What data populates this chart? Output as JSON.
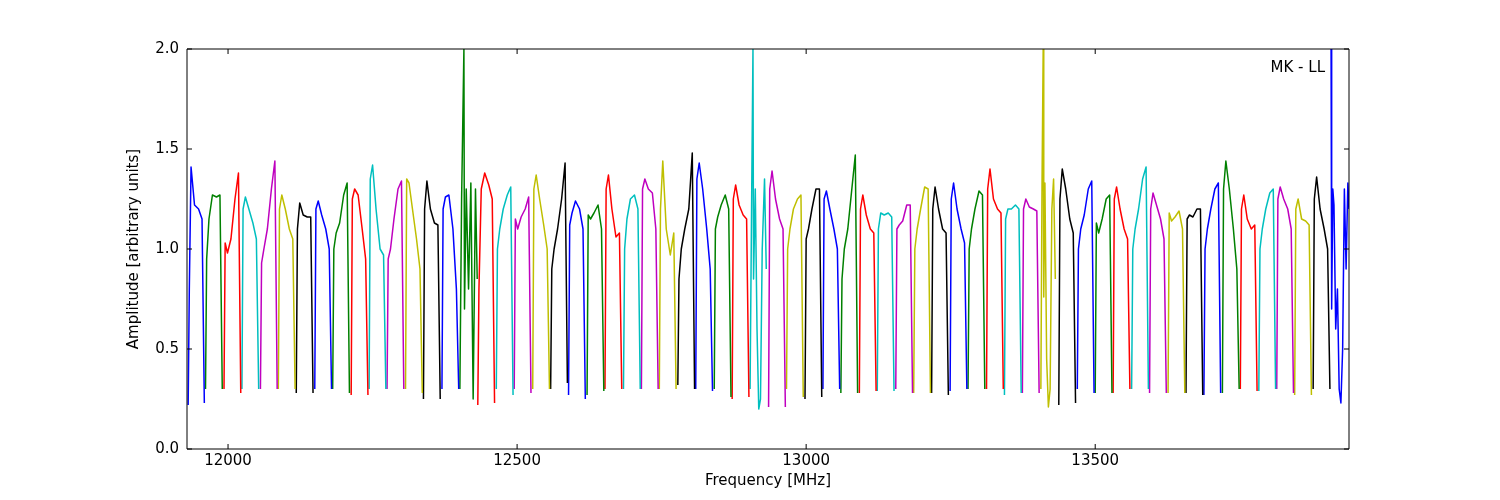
{
  "chart_data": {
    "type": "line",
    "xlabel": "Frequency [MHz]",
    "ylabel": "Amplitude [arbitrary units]",
    "annotations": [
      "MK - LL"
    ],
    "xlim": [
      11929,
      13939
    ],
    "ylim": [
      0,
      2
    ],
    "xticks": [
      12000,
      12500,
      13000,
      13500
    ],
    "yticks": [
      {
        "value": 0,
        "label": "0.0"
      },
      {
        "value": 0.5,
        "label": "0.5"
      },
      {
        "value": 1,
        "label": "1.0"
      },
      {
        "value": 1.5,
        "label": "1.5"
      },
      {
        "value": 2,
        "label": "2.0"
      }
    ],
    "grid": false,
    "legend": false,
    "marker": "none",
    "line_style": "solid",
    "series": [
      {
        "color": "#0000ff",
        "x": [
          11931,
          11933,
          11936,
          11942,
          11949,
          11955,
          11959
        ],
        "values": [
          0.22,
          0.8,
          1.41,
          1.22,
          1.2,
          1.15,
          0.23
        ]
      },
      {
        "color": "#008000",
        "x": [
          11961,
          11963,
          11967,
          11973,
          11980,
          11986,
          11990
        ],
        "values": [
          0.3,
          0.95,
          1.15,
          1.27,
          1.26,
          1.27,
          0.3
        ]
      },
      {
        "color": "#ff0000",
        "x": [
          11993,
          11995,
          11999,
          12005,
          12012,
          12018,
          12022
        ],
        "values": [
          0.3,
          1.03,
          0.98,
          1.05,
          1.25,
          1.38,
          0.28
        ]
      },
      {
        "color": "#00bfbf",
        "x": [
          12024,
          12026,
          12030,
          12036,
          12043,
          12049,
          12053
        ],
        "values": [
          0.3,
          1.2,
          1.26,
          1.2,
          1.13,
          1.05,
          0.3
        ]
      },
      {
        "color": "#bf00bf",
        "x": [
          12056,
          12058,
          12062,
          12068,
          12075,
          12081,
          12085
        ],
        "values": [
          0.3,
          0.93,
          1.0,
          1.1,
          1.3,
          1.44,
          0.3
        ]
      },
      {
        "color": "#bfbf00",
        "x": [
          12087,
          12089,
          12093,
          12099,
          12106,
          12112,
          12116
        ],
        "values": [
          0.3,
          1.2,
          1.27,
          1.2,
          1.1,
          1.05,
          0.3
        ]
      },
      {
        "color": "#000000",
        "x": [
          12118,
          12120,
          12124,
          12130,
          12137,
          12143,
          12147
        ],
        "values": [
          0.28,
          1.1,
          1.23,
          1.17,
          1.16,
          1.16,
          0.28
        ]
      },
      {
        "color": "#0000ff",
        "x": [
          12150,
          12152,
          12156,
          12162,
          12169,
          12175,
          12179
        ],
        "values": [
          0.3,
          1.2,
          1.24,
          1.17,
          1.1,
          1.0,
          0.3
        ]
      },
      {
        "color": "#008000",
        "x": [
          12181,
          12183,
          12187,
          12193,
          12200,
          12206,
          12210
        ],
        "values": [
          0.3,
          1.0,
          1.08,
          1.13,
          1.27,
          1.33,
          0.28
        ]
      },
      {
        "color": "#ff0000",
        "x": [
          12213,
          12215,
          12219,
          12225,
          12232,
          12238,
          12242
        ],
        "values": [
          0.27,
          1.25,
          1.3,
          1.27,
          1.1,
          0.95,
          0.27
        ]
      },
      {
        "color": "#00bfbf",
        "x": [
          12244,
          12246,
          12250,
          12256,
          12263,
          12269,
          12273
        ],
        "values": [
          0.3,
          1.35,
          1.42,
          1.2,
          1.0,
          0.97,
          0.3
        ]
      },
      {
        "color": "#bf00bf",
        "x": [
          12275,
          12277,
          12281,
          12287,
          12294,
          12300,
          12304
        ],
        "values": [
          0.3,
          0.95,
          1.0,
          1.15,
          1.3,
          1.34,
          0.3
        ]
      },
      {
        "color": "#bfbf00",
        "x": [
          12307,
          12309,
          12313,
          12319,
          12326,
          12332,
          12336
        ],
        "values": [
          0.3,
          1.35,
          1.33,
          1.2,
          1.05,
          0.9,
          0.28
        ]
      },
      {
        "color": "#000000",
        "x": [
          12338,
          12340,
          12344,
          12350,
          12357,
          12363,
          12367
        ],
        "values": [
          0.25,
          1.2,
          1.34,
          1.2,
          1.13,
          1.12,
          0.25
        ]
      },
      {
        "color": "#0000ff",
        "x": [
          12370,
          12372,
          12376,
          12382,
          12389,
          12395,
          12399
        ],
        "values": [
          0.3,
          1.2,
          1.26,
          1.27,
          1.1,
          0.8,
          0.3
        ]
      },
      {
        "color": "#008000",
        "x": [
          12401,
          12404,
          12408,
          12409,
          12412,
          12416,
          12420,
          12424,
          12428,
          12431
        ],
        "values": [
          0.3,
          1.25,
          2.0,
          0.7,
          1.3,
          0.8,
          1.33,
          0.25,
          1.3,
          0.85
        ]
      },
      {
        "color": "#ff0000",
        "x": [
          12432,
          12434,
          12438,
          12444,
          12451,
          12457,
          12461
        ],
        "values": [
          0.22,
          0.8,
          1.3,
          1.38,
          1.32,
          1.25,
          0.23
        ]
      },
      {
        "color": "#00bfbf",
        "x": [
          12464,
          12466,
          12470,
          12476,
          12483,
          12489,
          12493
        ],
        "values": [
          0.3,
          1.0,
          1.1,
          1.2,
          1.27,
          1.31,
          0.27
        ]
      },
      {
        "color": "#bf00bf",
        "x": [
          12495,
          12497,
          12501,
          12507,
          12514,
          12520,
          12524
        ],
        "values": [
          0.3,
          1.15,
          1.1,
          1.16,
          1.2,
          1.26,
          0.28
        ]
      },
      {
        "color": "#bfbf00",
        "x": [
          12527,
          12529,
          12533,
          12539,
          12546,
          12552,
          12556
        ],
        "values": [
          0.3,
          1.3,
          1.37,
          1.25,
          1.12,
          1.0,
          0.3
        ]
      },
      {
        "color": "#000000",
        "x": [
          12558,
          12560,
          12564,
          12570,
          12577,
          12583,
          12587
        ],
        "values": [
          0.3,
          0.9,
          1.0,
          1.1,
          1.25,
          1.43,
          0.33
        ]
      },
      {
        "color": "#0000ff",
        "x": [
          12589,
          12591,
          12595,
          12601,
          12608,
          12614,
          12618
        ],
        "values": [
          0.27,
          1.12,
          1.18,
          1.24,
          1.2,
          1.1,
          0.25
        ]
      },
      {
        "color": "#008000",
        "x": [
          12621,
          12623,
          12627,
          12633,
          12640,
          12646,
          12650
        ],
        "values": [
          0.27,
          1.17,
          1.15,
          1.18,
          1.22,
          1.1,
          0.29
        ]
      },
      {
        "color": "#ff0000",
        "x": [
          12652,
          12654,
          12658,
          12664,
          12671,
          12677,
          12681
        ],
        "values": [
          0.3,
          1.3,
          1.37,
          1.2,
          1.06,
          1.08,
          0.3
        ]
      },
      {
        "color": "#00bfbf",
        "x": [
          12684,
          12686,
          12690,
          12696,
          12703,
          12709,
          12713
        ],
        "values": [
          0.3,
          1.0,
          1.15,
          1.25,
          1.27,
          1.2,
          0.3
        ]
      },
      {
        "color": "#bf00bf",
        "x": [
          12715,
          12717,
          12721,
          12727,
          12734,
          12740,
          12744
        ],
        "values": [
          0.3,
          1.3,
          1.35,
          1.3,
          1.28,
          1.1,
          0.3
        ]
      },
      {
        "color": "#bfbf00",
        "x": [
          12746,
          12748,
          12752,
          12758,
          12765,
          12771,
          12775
        ],
        "values": [
          0.3,
          1.2,
          1.44,
          1.1,
          0.97,
          1.08,
          0.3
        ]
      },
      {
        "color": "#000000",
        "x": [
          12778,
          12780,
          12784,
          12790,
          12797,
          12803,
          12807
        ],
        "values": [
          0.32,
          0.85,
          1.0,
          1.1,
          1.2,
          1.48,
          0.3
        ]
      },
      {
        "color": "#0000ff",
        "x": [
          12809,
          12811,
          12815,
          12821,
          12828,
          12834,
          12838
        ],
        "values": [
          0.3,
          1.35,
          1.43,
          1.3,
          1.1,
          0.9,
          0.29
        ]
      },
      {
        "color": "#008000",
        "x": [
          12841,
          12843,
          12847,
          12853,
          12860,
          12866,
          12870
        ],
        "values": [
          0.3,
          1.1,
          1.16,
          1.22,
          1.27,
          1.2,
          0.26
        ]
      },
      {
        "color": "#ff0000",
        "x": [
          12872,
          12874,
          12878,
          12884,
          12891,
          12897,
          12901
        ],
        "values": [
          0.25,
          1.25,
          1.32,
          1.22,
          1.17,
          1.15,
          0.26
        ]
      },
      {
        "color": "#00bfbf",
        "x": [
          12903,
          12906,
          12908,
          12909,
          12912,
          12915,
          12918,
          12921,
          12924,
          12928,
          12931
        ],
        "values": [
          0.3,
          1.35,
          2.0,
          0.85,
          1.3,
          0.6,
          0.2,
          0.25,
          1.0,
          1.35,
          0.9
        ]
      },
      {
        "color": "#bf00bf",
        "x": [
          12935,
          12937,
          12941,
          12947,
          12954,
          12960,
          12964
        ],
        "values": [
          0.21,
          1.3,
          1.39,
          1.25,
          1.15,
          1.1,
          0.21
        ]
      },
      {
        "color": "#bfbf00",
        "x": [
          12966,
          12968,
          12972,
          12978,
          12985,
          12991,
          12995
        ],
        "values": [
          0.3,
          1.0,
          1.1,
          1.2,
          1.25,
          1.27,
          0.26
        ]
      },
      {
        "color": "#000000",
        "x": [
          12998,
          13000,
          13004,
          13010,
          13017,
          13023,
          13027
        ],
        "values": [
          0.25,
          1.05,
          1.1,
          1.2,
          1.3,
          1.3,
          0.26
        ]
      },
      {
        "color": "#0000ff",
        "x": [
          13029,
          13031,
          13035,
          13041,
          13048,
          13054,
          13058
        ],
        "values": [
          0.3,
          1.25,
          1.29,
          1.2,
          1.1,
          1.0,
          0.3
        ]
      },
      {
        "color": "#008000",
        "x": [
          13060,
          13062,
          13066,
          13072,
          13079,
          13085,
          13089
        ],
        "values": [
          0.28,
          0.85,
          1.0,
          1.1,
          1.3,
          1.47,
          0.28
        ]
      },
      {
        "color": "#ff0000",
        "x": [
          13092,
          13094,
          13098,
          13104,
          13111,
          13117,
          13121
        ],
        "values": [
          0.28,
          1.2,
          1.27,
          1.17,
          1.1,
          1.08,
          0.29
        ]
      },
      {
        "color": "#00bfbf",
        "x": [
          13123,
          13125,
          13129,
          13135,
          13142,
          13148,
          13152
        ],
        "values": [
          0.29,
          1.1,
          1.18,
          1.17,
          1.18,
          1.16,
          0.29
        ]
      },
      {
        "color": "#bf00bf",
        "x": [
          13155,
          13157,
          13161,
          13167,
          13174,
          13180,
          13184
        ],
        "values": [
          0.3,
          1.1,
          1.12,
          1.14,
          1.22,
          1.22,
          0.28
        ]
      },
      {
        "color": "#bfbf00",
        "x": [
          13186,
          13188,
          13192,
          13198,
          13205,
          13211,
          13215
        ],
        "values": [
          0.28,
          1.0,
          1.1,
          1.2,
          1.31,
          1.3,
          0.28
        ]
      },
      {
        "color": "#000000",
        "x": [
          13217,
          13219,
          13223,
          13229,
          13236,
          13242,
          13246
        ],
        "values": [
          0.28,
          1.2,
          1.31,
          1.2,
          1.1,
          1.08,
          0.27
        ]
      },
      {
        "color": "#0000ff",
        "x": [
          13249,
          13251,
          13255,
          13261,
          13268,
          13274,
          13278
        ],
        "values": [
          0.29,
          1.25,
          1.33,
          1.2,
          1.1,
          1.03,
          0.3
        ]
      },
      {
        "color": "#008000",
        "x": [
          13280,
          13282,
          13286,
          13292,
          13299,
          13305,
          13309
        ],
        "values": [
          0.3,
          1.0,
          1.1,
          1.2,
          1.29,
          1.27,
          0.3
        ]
      },
      {
        "color": "#ff0000",
        "x": [
          13312,
          13314,
          13318,
          13324,
          13331,
          13337,
          13341
        ],
        "values": [
          0.3,
          1.3,
          1.4,
          1.25,
          1.2,
          1.18,
          0.3
        ]
      },
      {
        "color": "#00bfbf",
        "x": [
          13343,
          13345,
          13349,
          13355,
          13362,
          13368,
          13372
        ],
        "values": [
          0.27,
          1.15,
          1.2,
          1.2,
          1.22,
          1.2,
          0.28
        ]
      },
      {
        "color": "#bf00bf",
        "x": [
          13374,
          13376,
          13380,
          13386,
          13393,
          13399,
          13403
        ],
        "values": [
          0.28,
          1.2,
          1.25,
          1.21,
          1.2,
          1.19,
          0.28
        ]
      },
      {
        "color": "#bfbf00",
        "x": [
          13406,
          13408,
          13410,
          13411,
          13413,
          13416,
          13419,
          13422,
          13425,
          13428,
          13431
        ],
        "values": [
          0.3,
          1.33,
          2.0,
          0.76,
          1.33,
          0.45,
          0.21,
          0.3,
          1.2,
          1.35,
          0.85
        ]
      },
      {
        "color": "#000000",
        "x": [
          13437,
          13439,
          13443,
          13449,
          13456,
          13462,
          13466
        ],
        "values": [
          0.22,
          1.25,
          1.4,
          1.3,
          1.15,
          1.08,
          0.23
        ]
      },
      {
        "color": "#0000ff",
        "x": [
          13469,
          13471,
          13475,
          13481,
          13488,
          13494,
          13498
        ],
        "values": [
          0.3,
          1.0,
          1.1,
          1.17,
          1.3,
          1.34,
          0.28
        ]
      },
      {
        "color": "#008000",
        "x": [
          13500,
          13502,
          13506,
          13512,
          13519,
          13525,
          13529
        ],
        "values": [
          0.28,
          1.13,
          1.08,
          1.15,
          1.25,
          1.27,
          0.28
        ]
      },
      {
        "color": "#ff0000",
        "x": [
          13531,
          13533,
          13537,
          13543,
          13550,
          13556,
          13560
        ],
        "values": [
          0.28,
          1.25,
          1.31,
          1.2,
          1.1,
          1.05,
          0.3
        ]
      },
      {
        "color": "#00bfbf",
        "x": [
          13563,
          13565,
          13569,
          13575,
          13582,
          13588,
          13592
        ],
        "values": [
          0.3,
          1.0,
          1.1,
          1.2,
          1.35,
          1.41,
          0.3
        ]
      },
      {
        "color": "#bf00bf",
        "x": [
          13594,
          13596,
          13600,
          13606,
          13613,
          13619,
          13623
        ],
        "values": [
          0.28,
          1.2,
          1.28,
          1.22,
          1.15,
          1.05,
          0.28
        ]
      },
      {
        "color": "#bfbf00",
        "x": [
          13626,
          13628,
          13632,
          13638,
          13645,
          13651,
          13655
        ],
        "values": [
          0.28,
          1.18,
          1.14,
          1.16,
          1.19,
          1.1,
          0.28
        ]
      },
      {
        "color": "#000000",
        "x": [
          13657,
          13659,
          13663,
          13669,
          13676,
          13682,
          13686
        ],
        "values": [
          0.28,
          1.15,
          1.17,
          1.16,
          1.2,
          1.2,
          0.27
        ]
      },
      {
        "color": "#0000ff",
        "x": [
          13688,
          13690,
          13694,
          13700,
          13707,
          13713,
          13717
        ],
        "values": [
          0.27,
          1.0,
          1.1,
          1.2,
          1.3,
          1.33,
          0.28
        ]
      },
      {
        "color": "#008000",
        "x": [
          13720,
          13722,
          13726,
          13732,
          13739,
          13745,
          13749
        ],
        "values": [
          0.28,
          1.3,
          1.44,
          1.3,
          1.1,
          0.9,
          0.3
        ]
      },
      {
        "color": "#ff0000",
        "x": [
          13751,
          13753,
          13757,
          13763,
          13770,
          13776,
          13780
        ],
        "values": [
          0.3,
          1.2,
          1.27,
          1.15,
          1.1,
          1.12,
          0.29
        ]
      },
      {
        "color": "#00bfbf",
        "x": [
          13783,
          13785,
          13789,
          13795,
          13802,
          13808,
          13812
        ],
        "values": [
          0.29,
          1.0,
          1.1,
          1.2,
          1.28,
          1.3,
          0.3
        ]
      },
      {
        "color": "#bf00bf",
        "x": [
          13814,
          13816,
          13820,
          13826,
          13833,
          13839,
          13843
        ],
        "values": [
          0.3,
          1.25,
          1.31,
          1.25,
          1.2,
          1.1,
          0.28
        ]
      },
      {
        "color": "#bfbf00",
        "x": [
          13845,
          13847,
          13851,
          13857,
          13864,
          13870,
          13874
        ],
        "values": [
          0.27,
          1.2,
          1.25,
          1.15,
          1.14,
          1.12,
          0.27
        ]
      },
      {
        "color": "#000000",
        "x": [
          13877,
          13879,
          13883,
          13889,
          13896,
          13902,
          13906
        ],
        "values": [
          0.3,
          1.25,
          1.36,
          1.2,
          1.1,
          1.0,
          0.3
        ]
      },
      {
        "color": "#0000ff",
        "x": [
          13908,
          13909,
          13911,
          13913,
          13916,
          13919,
          13922,
          13925,
          13928,
          13931,
          13934,
          13937,
          13939
        ],
        "values": [
          2.0,
          0.7,
          1.3,
          1.22,
          0.6,
          0.8,
          0.3,
          0.23,
          0.5,
          1.3,
          0.9,
          1.33,
          1.2
        ]
      }
    ]
  }
}
